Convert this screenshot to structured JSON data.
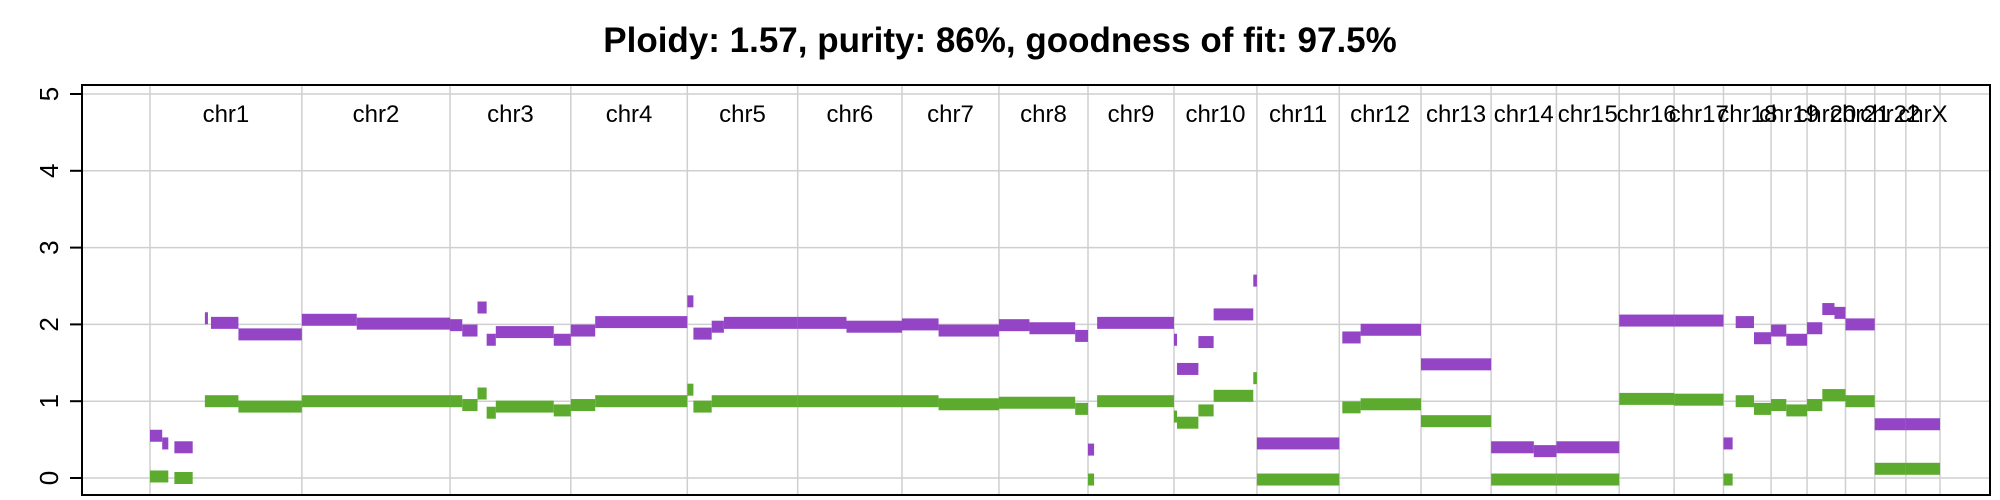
{
  "chart_data": {
    "type": "scatter",
    "title": "Ploidy: 1.57, purity: 86%, goodness of fit: 97.5%",
    "xlabel": "",
    "ylabel": "",
    "ylim": [
      0,
      5
    ],
    "yticks": [
      0,
      1,
      2,
      3,
      4,
      5
    ],
    "grid": true,
    "colors": {
      "major": "#9345c6",
      "minor": "#5cab2e",
      "grid": "#cfcfcf",
      "axis": "#000000"
    },
    "chromosomes": [
      {
        "name": "chr1",
        "len": 249
      },
      {
        "name": "chr2",
        "len": 243
      },
      {
        "name": "chr3",
        "len": 198
      },
      {
        "name": "chr4",
        "len": 191
      },
      {
        "name": "chr5",
        "len": 181
      },
      {
        "name": "chr6",
        "len": 171
      },
      {
        "name": "chr7",
        "len": 159
      },
      {
        "name": "chr8",
        "len": 146
      },
      {
        "name": "chr9",
        "len": 141
      },
      {
        "name": "chr10",
        "len": 136
      },
      {
        "name": "chr11",
        "len": 135
      },
      {
        "name": "chr12",
        "len": 134
      },
      {
        "name": "chr13",
        "len": 115
      },
      {
        "name": "chr14",
        "len": 107
      },
      {
        "name": "chr15",
        "len": 103
      },
      {
        "name": "chr16",
        "len": 90
      },
      {
        "name": "chr17",
        "len": 81
      },
      {
        "name": "chr18",
        "len": 78
      },
      {
        "name": "chr19",
        "len": 59
      },
      {
        "name": "chr20",
        "len": 63
      },
      {
        "name": "chr21",
        "len": 48
      },
      {
        "name": "chr22",
        "len": 51
      },
      {
        "name": "chrX",
        "len": 56
      }
    ],
    "series": [
      {
        "name": "major",
        "segments": [
          {
            "chr": "chr1",
            "start": 0,
            "end": 20,
            "y": 0.55
          },
          {
            "chr": "chr1",
            "start": 20,
            "end": 30,
            "y": 0.45
          },
          {
            "chr": "chr1",
            "start": 40,
            "end": 70,
            "y": 0.4
          },
          {
            "chr": "chr1",
            "start": 90,
            "end": 95,
            "y": 2.08
          },
          {
            "chr": "chr1",
            "start": 100,
            "end": 145,
            "y": 2.02
          },
          {
            "chr": "chr1",
            "start": 145,
            "end": 249,
            "y": 1.87
          },
          {
            "chr": "chr2",
            "start": 0,
            "end": 90,
            "y": 2.06
          },
          {
            "chr": "chr2",
            "start": 90,
            "end": 243,
            "y": 2.01
          },
          {
            "chr": "chr3",
            "start": 0,
            "end": 20,
            "y": 1.99
          },
          {
            "chr": "chr3",
            "start": 20,
            "end": 45,
            "y": 1.92
          },
          {
            "chr": "chr3",
            "start": 45,
            "end": 60,
            "y": 2.22
          },
          {
            "chr": "chr3",
            "start": 60,
            "end": 75,
            "y": 1.8
          },
          {
            "chr": "chr3",
            "start": 75,
            "end": 170,
            "y": 1.9
          },
          {
            "chr": "chr3",
            "start": 170,
            "end": 198,
            "y": 1.8
          },
          {
            "chr": "chr4",
            "start": 0,
            "end": 40,
            "y": 1.92
          },
          {
            "chr": "chr4",
            "start": 40,
            "end": 191,
            "y": 2.03
          },
          {
            "chr": "chr5",
            "start": 0,
            "end": 10,
            "y": 2.3
          },
          {
            "chr": "chr5",
            "start": 10,
            "end": 40,
            "y": 1.88
          },
          {
            "chr": "chr5",
            "start": 40,
            "end": 60,
            "y": 1.97
          },
          {
            "chr": "chr5",
            "start": 60,
            "end": 181,
            "y": 2.02
          },
          {
            "chr": "chr6",
            "start": 0,
            "end": 80,
            "y": 2.02
          },
          {
            "chr": "chr6",
            "start": 80,
            "end": 171,
            "y": 1.97
          },
          {
            "chr": "chr7",
            "start": 0,
            "end": 60,
            "y": 2.0
          },
          {
            "chr": "chr7",
            "start": 60,
            "end": 159,
            "y": 1.92
          },
          {
            "chr": "chr8",
            "start": 0,
            "end": 50,
            "y": 1.99
          },
          {
            "chr": "chr8",
            "start": 50,
            "end": 125,
            "y": 1.95
          },
          {
            "chr": "chr8",
            "start": 125,
            "end": 146,
            "y": 1.85
          },
          {
            "chr": "chr9",
            "start": 0,
            "end": 10,
            "y": 0.37
          },
          {
            "chr": "chr9",
            "start": 15,
            "end": 141,
            "y": 2.02
          },
          {
            "chr": "chr10",
            "start": 0,
            "end": 5,
            "y": 1.8
          },
          {
            "chr": "chr10",
            "start": 5,
            "end": 40,
            "y": 1.42
          },
          {
            "chr": "chr10",
            "start": 40,
            "end": 65,
            "y": 1.77
          },
          {
            "chr": "chr10",
            "start": 65,
            "end": 130,
            "y": 2.13
          },
          {
            "chr": "chr10",
            "start": 130,
            "end": 136,
            "y": 2.57
          },
          {
            "chr": "chr11",
            "start": 0,
            "end": 135,
            "y": 0.45
          },
          {
            "chr": "chr12",
            "start": 5,
            "end": 35,
            "y": 1.83
          },
          {
            "chr": "chr12",
            "start": 35,
            "end": 134,
            "y": 1.93
          },
          {
            "chr": "chr13",
            "start": 0,
            "end": 115,
            "y": 1.48
          },
          {
            "chr": "chr14",
            "start": 0,
            "end": 70,
            "y": 0.4
          },
          {
            "chr": "chr14",
            "start": 70,
            "end": 107,
            "y": 0.35
          },
          {
            "chr": "chr15",
            "start": 0,
            "end": 103,
            "y": 0.4
          },
          {
            "chr": "chr16",
            "start": 0,
            "end": 90,
            "y": 2.05
          },
          {
            "chr": "chr17",
            "start": 0,
            "end": 81,
            "y": 2.05
          },
          {
            "chr": "chr18",
            "start": 0,
            "end": 15,
            "y": 0.45
          },
          {
            "chr": "chr18",
            "start": 20,
            "end": 50,
            "y": 2.03
          },
          {
            "chr": "chr18",
            "start": 50,
            "end": 78,
            "y": 1.82
          },
          {
            "chr": "chr19",
            "start": 0,
            "end": 25,
            "y": 1.92
          },
          {
            "chr": "chr19",
            "start": 25,
            "end": 59,
            "y": 1.8
          },
          {
            "chr": "chr20",
            "start": 0,
            "end": 25,
            "y": 1.95
          },
          {
            "chr": "chr20",
            "start": 25,
            "end": 45,
            "y": 2.2
          },
          {
            "chr": "chr20",
            "start": 45,
            "end": 63,
            "y": 2.15
          },
          {
            "chr": "chr21",
            "start": 0,
            "end": 48,
            "y": 2.0
          },
          {
            "chr": "chr22",
            "start": 0,
            "end": 51,
            "y": 0.7
          },
          {
            "chr": "chrX",
            "start": 0,
            "end": 56,
            "y": 0.7
          }
        ]
      },
      {
        "name": "minor",
        "segments": [
          {
            "chr": "chr1",
            "start": 0,
            "end": 30,
            "y": 0.02
          },
          {
            "chr": "chr1",
            "start": 40,
            "end": 70,
            "y": 0.0
          },
          {
            "chr": "chr1",
            "start": 90,
            "end": 145,
            "y": 1.0
          },
          {
            "chr": "chr1",
            "start": 145,
            "end": 249,
            "y": 0.93
          },
          {
            "chr": "chr2",
            "start": 0,
            "end": 243,
            "y": 1.0
          },
          {
            "chr": "chr3",
            "start": 0,
            "end": 20,
            "y": 1.0
          },
          {
            "chr": "chr3",
            "start": 20,
            "end": 45,
            "y": 0.95
          },
          {
            "chr": "chr3",
            "start": 45,
            "end": 60,
            "y": 1.1
          },
          {
            "chr": "chr3",
            "start": 60,
            "end": 75,
            "y": 0.85
          },
          {
            "chr": "chr3",
            "start": 75,
            "end": 170,
            "y": 0.93
          },
          {
            "chr": "chr3",
            "start": 170,
            "end": 198,
            "y": 0.88
          },
          {
            "chr": "chr4",
            "start": 0,
            "end": 40,
            "y": 0.95
          },
          {
            "chr": "chr4",
            "start": 40,
            "end": 191,
            "y": 1.0
          },
          {
            "chr": "chr5",
            "start": 0,
            "end": 10,
            "y": 1.15
          },
          {
            "chr": "chr5",
            "start": 10,
            "end": 40,
            "y": 0.93
          },
          {
            "chr": "chr5",
            "start": 40,
            "end": 181,
            "y": 1.0
          },
          {
            "chr": "chr6",
            "start": 0,
            "end": 171,
            "y": 1.0
          },
          {
            "chr": "chr7",
            "start": 0,
            "end": 60,
            "y": 1.0
          },
          {
            "chr": "chr7",
            "start": 60,
            "end": 159,
            "y": 0.96
          },
          {
            "chr": "chr8",
            "start": 0,
            "end": 125,
            "y": 0.98
          },
          {
            "chr": "chr8",
            "start": 125,
            "end": 146,
            "y": 0.9
          },
          {
            "chr": "chr9",
            "start": 0,
            "end": 10,
            "y": -0.02
          },
          {
            "chr": "chr9",
            "start": 15,
            "end": 141,
            "y": 1.0
          },
          {
            "chr": "chr10",
            "start": 0,
            "end": 5,
            "y": 0.8
          },
          {
            "chr": "chr10",
            "start": 5,
            "end": 40,
            "y": 0.72
          },
          {
            "chr": "chr10",
            "start": 40,
            "end": 65,
            "y": 0.88
          },
          {
            "chr": "chr10",
            "start": 65,
            "end": 130,
            "y": 1.07
          },
          {
            "chr": "chr10",
            "start": 130,
            "end": 136,
            "y": 1.3
          },
          {
            "chr": "chr11",
            "start": 0,
            "end": 135,
            "y": -0.02
          },
          {
            "chr": "chr12",
            "start": 5,
            "end": 35,
            "y": 0.92
          },
          {
            "chr": "chr12",
            "start": 35,
            "end": 134,
            "y": 0.96
          },
          {
            "chr": "chr13",
            "start": 0,
            "end": 115,
            "y": 0.74
          },
          {
            "chr": "chr14",
            "start": 0,
            "end": 107,
            "y": -0.02
          },
          {
            "chr": "chr15",
            "start": 0,
            "end": 103,
            "y": -0.02
          },
          {
            "chr": "chr16",
            "start": 0,
            "end": 90,
            "y": 1.03
          },
          {
            "chr": "chr17",
            "start": 0,
            "end": 81,
            "y": 1.02
          },
          {
            "chr": "chr18",
            "start": 0,
            "end": 15,
            "y": -0.02
          },
          {
            "chr": "chr18",
            "start": 20,
            "end": 50,
            "y": 1.0
          },
          {
            "chr": "chr18",
            "start": 50,
            "end": 78,
            "y": 0.9
          },
          {
            "chr": "chr19",
            "start": 0,
            "end": 25,
            "y": 0.95
          },
          {
            "chr": "chr19",
            "start": 25,
            "end": 59,
            "y": 0.88
          },
          {
            "chr": "chr20",
            "start": 0,
            "end": 25,
            "y": 0.95
          },
          {
            "chr": "chr20",
            "start": 25,
            "end": 63,
            "y": 1.08
          },
          {
            "chr": "chr21",
            "start": 0,
            "end": 48,
            "y": 1.0
          },
          {
            "chr": "chr22",
            "start": 0,
            "end": 51,
            "y": 0.12
          },
          {
            "chr": "chrX",
            "start": 0,
            "end": 56,
            "y": 0.12
          }
        ]
      }
    ]
  }
}
